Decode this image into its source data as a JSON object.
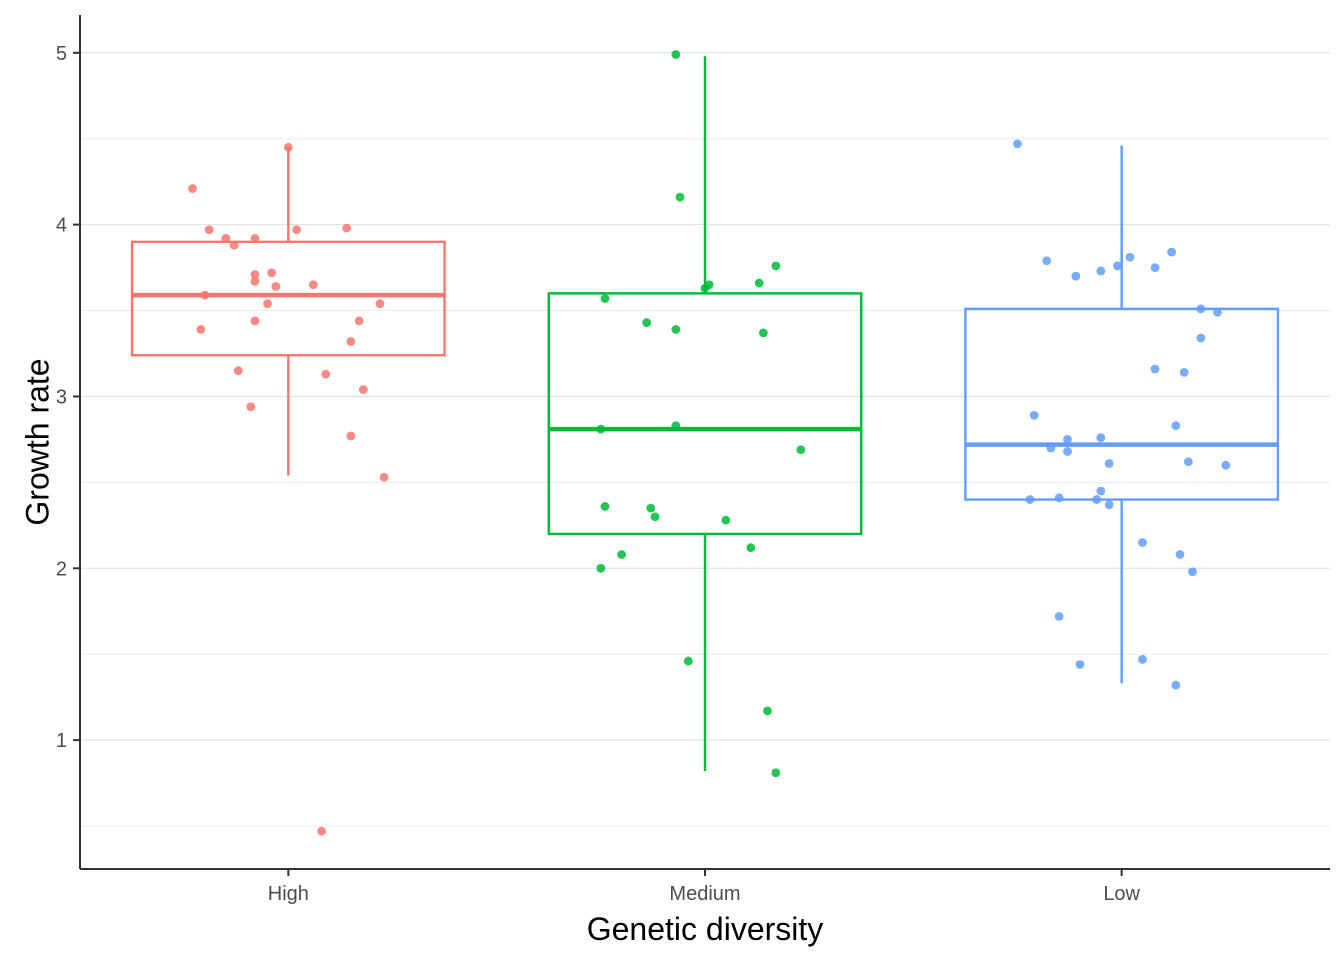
{
  "chart_data": {
    "type": "boxplot",
    "title": "",
    "xlabel": "Genetic diversity",
    "ylabel": "Growth rate",
    "ylim": [
      0.25,
      5.22
    ],
    "y_ticks": [
      1,
      2,
      3,
      4,
      5
    ],
    "y_minor_ticks": [
      0.5,
      1.5,
      2.5,
      3.5,
      4.5
    ],
    "grid": "horizontal",
    "legend": "none",
    "categories": [
      "High",
      "Medium",
      "Low"
    ],
    "series": [
      {
        "category": "High",
        "color": "#F8766D",
        "box": {
          "q1": 3.24,
          "median": 3.59,
          "q3": 3.9,
          "whisker_low": 2.54,
          "whisker_high": 4.45
        },
        "points": [
          {
            "x": -0.23,
            "y": 4.21
          },
          {
            "x": -0.19,
            "y": 3.97
          },
          {
            "x": -0.15,
            "y": 3.92
          },
          {
            "x": -0.13,
            "y": 3.88
          },
          {
            "x": -0.08,
            "y": 3.92
          },
          {
            "x": 0.02,
            "y": 3.97
          },
          {
            "x": 0.14,
            "y": 3.98
          },
          {
            "x": 0.0,
            "y": 4.45
          },
          {
            "x": -0.08,
            "y": 3.71
          },
          {
            "x": -0.08,
            "y": 3.67
          },
          {
            "x": -0.04,
            "y": 3.72
          },
          {
            "x": -0.03,
            "y": 3.64
          },
          {
            "x": 0.06,
            "y": 3.65
          },
          {
            "x": -0.2,
            "y": 3.59
          },
          {
            "x": -0.05,
            "y": 3.54
          },
          {
            "x": 0.22,
            "y": 3.54
          },
          {
            "x": -0.21,
            "y": 3.39
          },
          {
            "x": -0.08,
            "y": 3.44
          },
          {
            "x": 0.17,
            "y": 3.44
          },
          {
            "x": 0.15,
            "y": 3.32
          },
          {
            "x": -0.12,
            "y": 3.15
          },
          {
            "x": 0.09,
            "y": 3.13
          },
          {
            "x": 0.18,
            "y": 3.04
          },
          {
            "x": -0.09,
            "y": 2.94
          },
          {
            "x": 0.15,
            "y": 2.77
          },
          {
            "x": 0.23,
            "y": 2.53
          },
          {
            "x": 0.08,
            "y": 0.47
          }
        ]
      },
      {
        "category": "Medium",
        "color": "#00BA38",
        "box": {
          "q1": 2.2,
          "median": 2.81,
          "q3": 3.6,
          "whisker_low": 0.82,
          "whisker_high": 4.98
        },
        "points": [
          {
            "x": -0.07,
            "y": 4.99
          },
          {
            "x": -0.06,
            "y": 4.16
          },
          {
            "x": 0.17,
            "y": 3.76
          },
          {
            "x": 0.13,
            "y": 3.66
          },
          {
            "x": 0.01,
            "y": 3.65
          },
          {
            "x": 0.0,
            "y": 3.63
          },
          {
            "x": -0.24,
            "y": 3.57
          },
          {
            "x": -0.14,
            "y": 3.43
          },
          {
            "x": -0.07,
            "y": 3.39
          },
          {
            "x": 0.14,
            "y": 3.37
          },
          {
            "x": -0.25,
            "y": 2.81
          },
          {
            "x": -0.07,
            "y": 2.83
          },
          {
            "x": 0.23,
            "y": 2.69
          },
          {
            "x": -0.24,
            "y": 2.36
          },
          {
            "x": -0.13,
            "y": 2.35
          },
          {
            "x": -0.12,
            "y": 2.3
          },
          {
            "x": 0.05,
            "y": 2.28
          },
          {
            "x": -0.2,
            "y": 2.08
          },
          {
            "x": 0.11,
            "y": 2.12
          },
          {
            "x": -0.25,
            "y": 2.0
          },
          {
            "x": -0.04,
            "y": 1.46
          },
          {
            "x": 0.15,
            "y": 1.17
          },
          {
            "x": 0.17,
            "y": 0.81
          }
        ]
      },
      {
        "category": "Low",
        "color": "#619CFF",
        "box": {
          "q1": 2.4,
          "median": 2.72,
          "q3": 3.51,
          "whisker_low": 1.33,
          "whisker_high": 4.46
        },
        "points": [
          {
            "x": -0.25,
            "y": 4.47
          },
          {
            "x": 0.12,
            "y": 3.84
          },
          {
            "x": 0.02,
            "y": 3.81
          },
          {
            "x": -0.18,
            "y": 3.79
          },
          {
            "x": -0.01,
            "y": 3.76
          },
          {
            "x": -0.05,
            "y": 3.73
          },
          {
            "x": 0.08,
            "y": 3.75
          },
          {
            "x": -0.11,
            "y": 3.7
          },
          {
            "x": 0.19,
            "y": 3.51
          },
          {
            "x": 0.23,
            "y": 3.49
          },
          {
            "x": 0.19,
            "y": 3.34
          },
          {
            "x": 0.08,
            "y": 3.16
          },
          {
            "x": 0.15,
            "y": 3.14
          },
          {
            "x": -0.21,
            "y": 2.89
          },
          {
            "x": 0.13,
            "y": 2.83
          },
          {
            "x": -0.13,
            "y": 2.75
          },
          {
            "x": -0.05,
            "y": 2.76
          },
          {
            "x": -0.17,
            "y": 2.7
          },
          {
            "x": -0.13,
            "y": 2.68
          },
          {
            "x": -0.03,
            "y": 2.61
          },
          {
            "x": 0.16,
            "y": 2.62
          },
          {
            "x": 0.25,
            "y": 2.6
          },
          {
            "x": -0.05,
            "y": 2.45
          },
          {
            "x": -0.22,
            "y": 2.4
          },
          {
            "x": -0.15,
            "y": 2.41
          },
          {
            "x": -0.06,
            "y": 2.4
          },
          {
            "x": -0.03,
            "y": 2.37
          },
          {
            "x": 0.05,
            "y": 2.15
          },
          {
            "x": 0.14,
            "y": 2.08
          },
          {
            "x": 0.17,
            "y": 1.98
          },
          {
            "x": -0.15,
            "y": 1.72
          },
          {
            "x": -0.1,
            "y": 1.44
          },
          {
            "x": 0.05,
            "y": 1.47
          },
          {
            "x": 0.13,
            "y": 1.32
          }
        ]
      }
    ]
  }
}
